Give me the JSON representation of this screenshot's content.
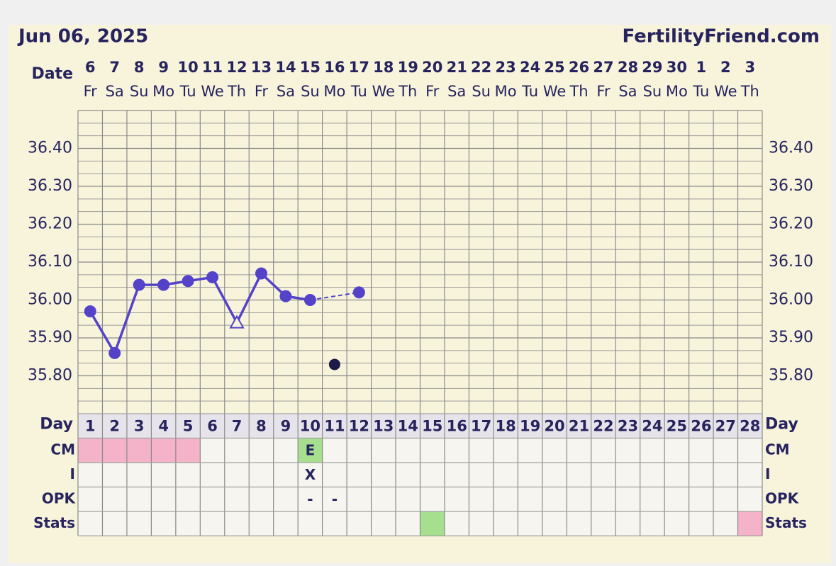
{
  "header": {
    "date": "Jun 06, 2025",
    "site": "FertilityFriend.com"
  },
  "chart_data": {
    "type": "line",
    "date_label": "Date",
    "dates": [
      6,
      7,
      8,
      9,
      10,
      11,
      12,
      13,
      14,
      15,
      16,
      17,
      18,
      19,
      20,
      21,
      22,
      23,
      24,
      25,
      26,
      27,
      28,
      29,
      30,
      1,
      2,
      3
    ],
    "weekdays": [
      "Fr",
      "Sa",
      "Su",
      "Mo",
      "Tu",
      "We",
      "Th",
      "Fr",
      "Sa",
      "Su",
      "Mo",
      "Tu",
      "We",
      "Th",
      "Fr",
      "Sa",
      "Su",
      "Mo",
      "Tu",
      "We",
      "Th",
      "Fr",
      "Sa",
      "Su",
      "Mo",
      "Tu",
      "We",
      "Th"
    ],
    "day_label": "Day",
    "categories": [
      1,
      2,
      3,
      4,
      5,
      6,
      7,
      8,
      9,
      10,
      11,
      12,
      13,
      14,
      15,
      16,
      17,
      18,
      19,
      20,
      21,
      22,
      23,
      24,
      25,
      26,
      27,
      28
    ],
    "series": [
      {
        "color": "#5443c9",
        "values": [
          35.97,
          35.86,
          36.04,
          36.04,
          36.05,
          36.06,
          35.94,
          36.07,
          36.01,
          36.0,
          35.83,
          36.02,
          null,
          null,
          null,
          null,
          null,
          null,
          null,
          null,
          null,
          null,
          null,
          null,
          null,
          null,
          null,
          null
        ],
        "markers": [
          "circle",
          "circle",
          "circle",
          "circle",
          "circle",
          "circle",
          "triangle",
          "circle",
          "circle",
          "circle",
          "discarded",
          "circle",
          null,
          null,
          null,
          null,
          null,
          null,
          null,
          null,
          null,
          null,
          null,
          null,
          null,
          null,
          null,
          null
        ]
      }
    ],
    "ylim": [
      35.7,
      36.5
    ],
    "yticks": [
      {
        "value": 35.8,
        "label": "35.80"
      },
      {
        "value": 35.9,
        "label": "35.90"
      },
      {
        "value": 36.0,
        "label": "36.00"
      },
      {
        "value": 36.1,
        "label": "36.10"
      },
      {
        "value": 36.2,
        "label": "36.20"
      },
      {
        "value": 36.3,
        "label": "36.30"
      },
      {
        "value": 36.4,
        "label": "36.40"
      }
    ],
    "grid": true,
    "rows": [
      {
        "label": "CM",
        "values": [
          null,
          null,
          null,
          null,
          null,
          null,
          null,
          null,
          null,
          "E",
          null,
          null,
          null,
          null,
          null,
          null,
          null,
          null,
          null,
          null,
          null,
          null,
          null,
          null,
          null,
          null,
          null,
          null
        ],
        "colors": [
          "#f4b3c8",
          "#f4b3c8",
          "#f4b3c8",
          "#f4b3c8",
          "#f4b3c8",
          null,
          null,
          null,
          null,
          "#a6e08f",
          null,
          null,
          null,
          null,
          null,
          null,
          null,
          null,
          null,
          null,
          null,
          null,
          null,
          null,
          null,
          null,
          null,
          null
        ]
      },
      {
        "label": "I",
        "values": [
          null,
          null,
          null,
          null,
          null,
          null,
          null,
          null,
          null,
          "X",
          null,
          null,
          null,
          null,
          null,
          null,
          null,
          null,
          null,
          null,
          null,
          null,
          null,
          null,
          null,
          null,
          null,
          null
        ]
      },
      {
        "label": "OPK",
        "values": [
          null,
          null,
          null,
          null,
          null,
          null,
          null,
          null,
          null,
          "-",
          "-",
          null,
          null,
          null,
          null,
          null,
          null,
          null,
          null,
          null,
          null,
          null,
          null,
          null,
          null,
          null,
          null,
          null
        ]
      },
      {
        "label": "Stats",
        "colors": [
          null,
          null,
          null,
          null,
          null,
          null,
          null,
          null,
          null,
          null,
          null,
          null,
          null,
          null,
          "#a6e08f",
          null,
          null,
          null,
          null,
          null,
          null,
          null,
          null,
          null,
          null,
          null,
          null,
          "#f4b3c8"
        ]
      }
    ]
  }
}
